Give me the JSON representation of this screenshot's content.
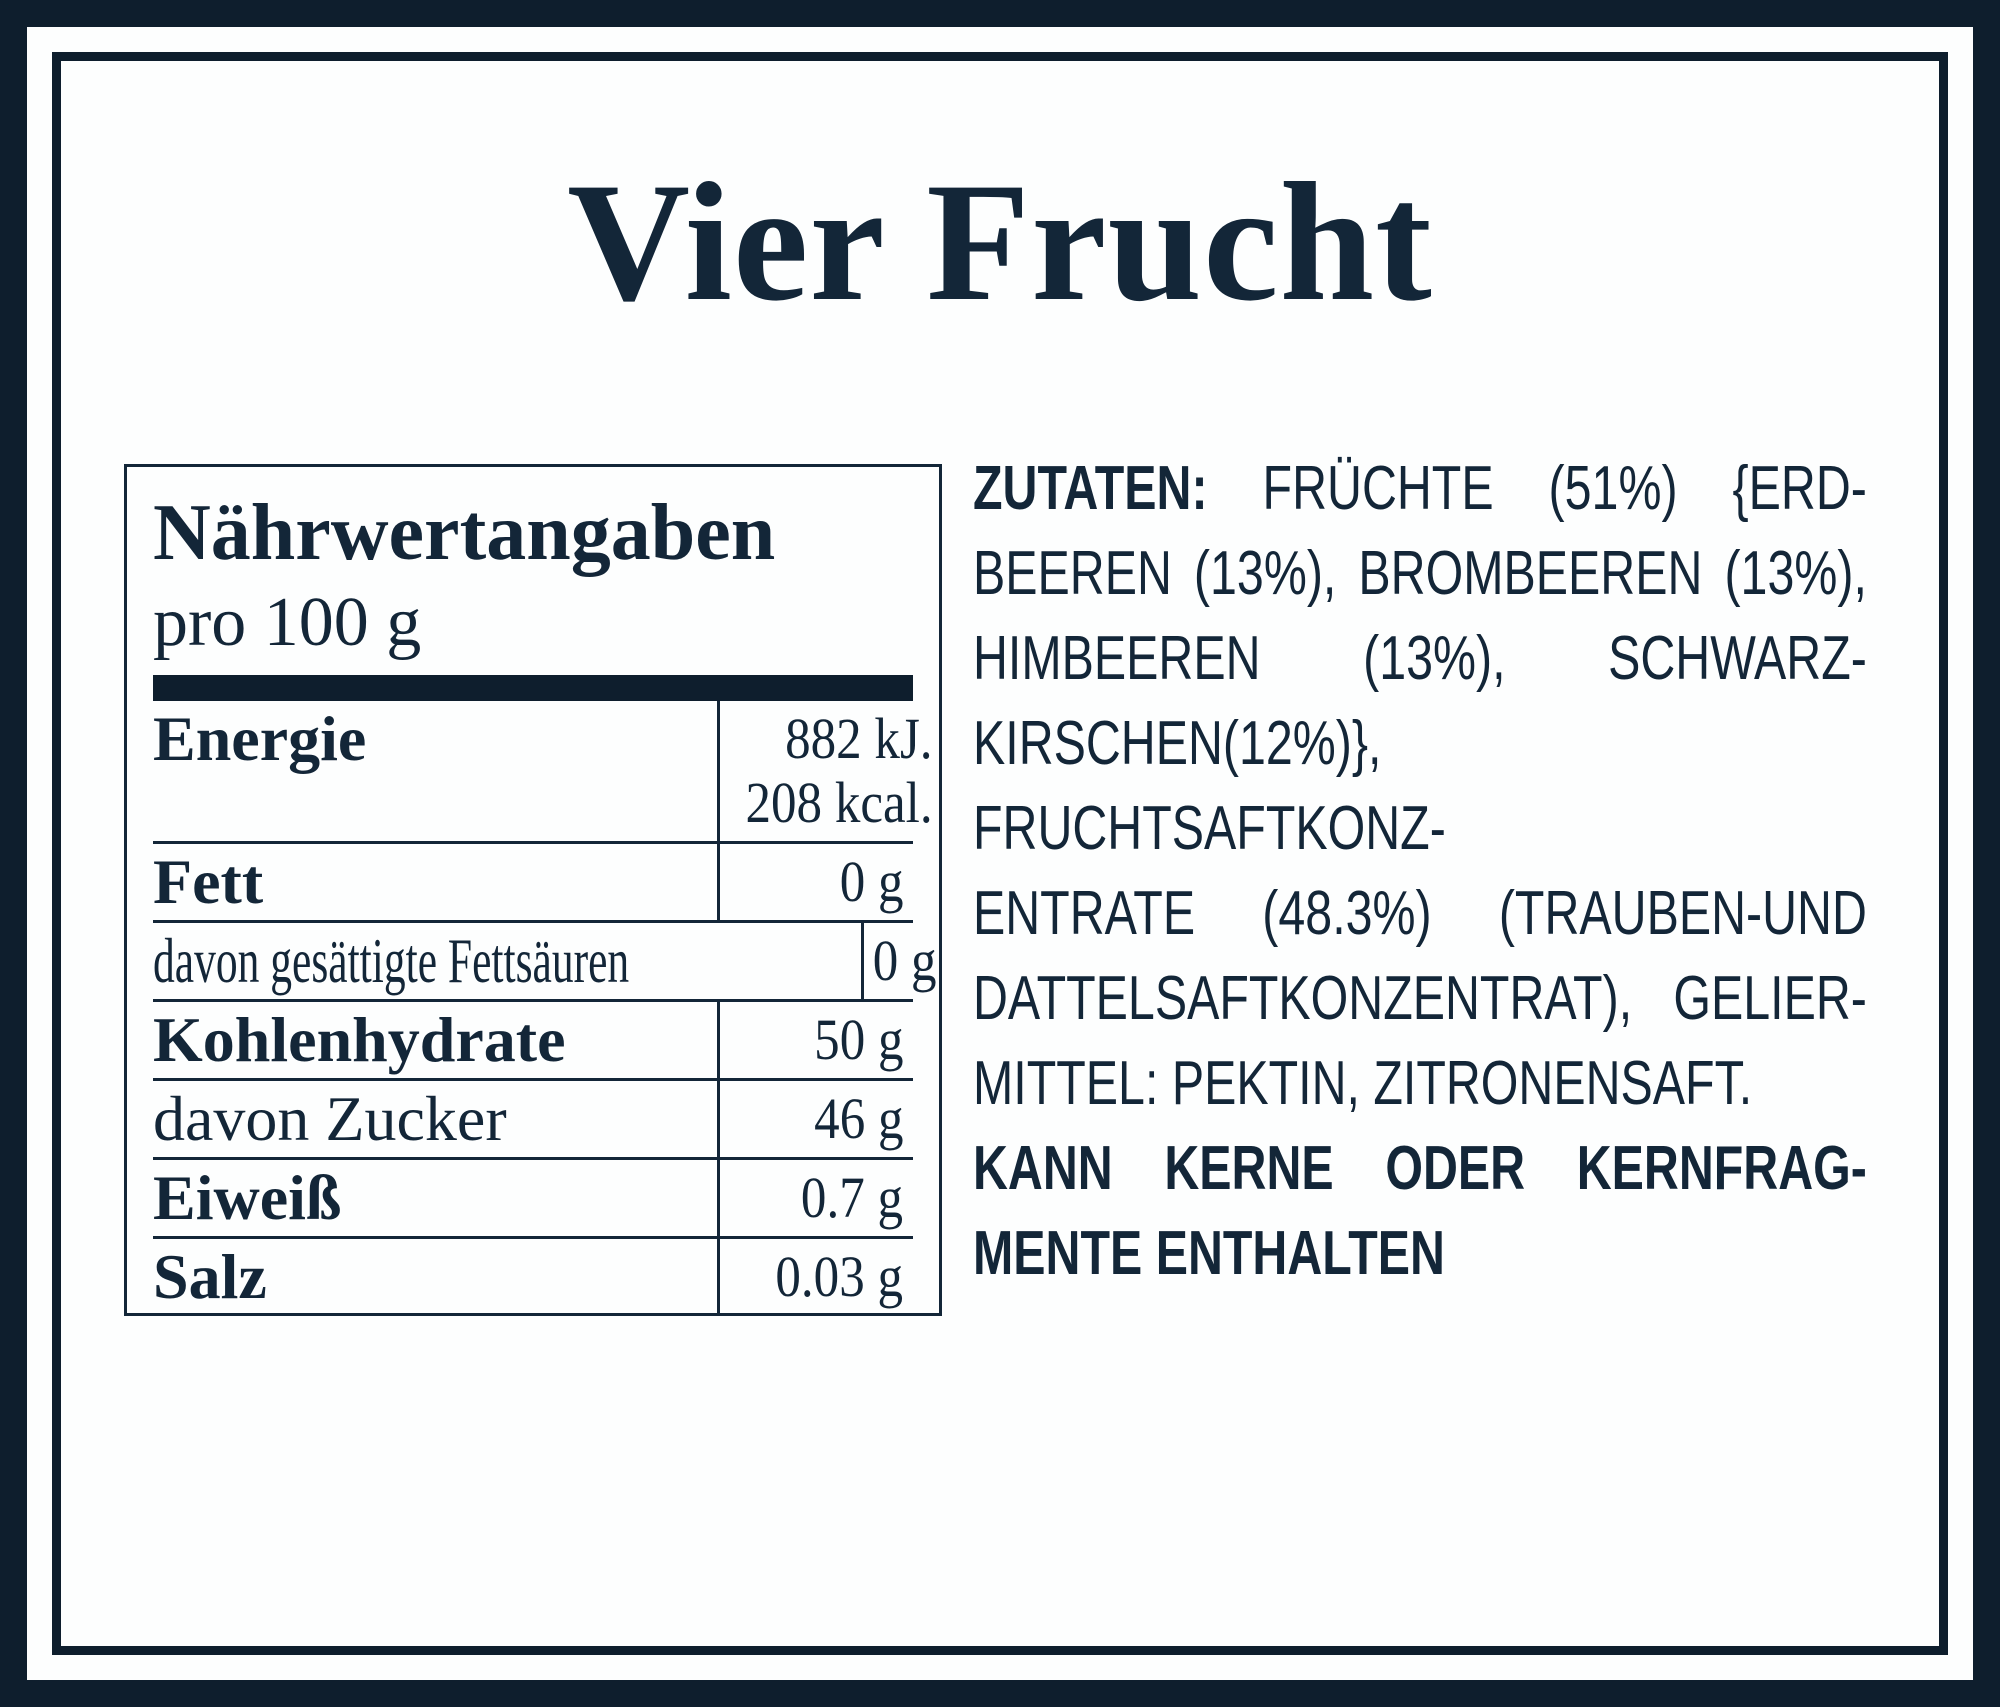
{
  "product": {
    "title": "Vier Frucht"
  },
  "nutrition": {
    "heading": "Nährwertangaben",
    "subheading": "pro 100 g",
    "rows": [
      {
        "label": "Energie",
        "bold": true,
        "values": [
          "882 kJ.",
          "208 kcal."
        ]
      },
      {
        "label": "Fett",
        "bold": true,
        "values": [
          "0 g"
        ]
      },
      {
        "label": "davon gesättigte Fettsäuren",
        "bold": false,
        "values": [
          "0 g"
        ]
      },
      {
        "label": "Kohlenhydrate",
        "bold": true,
        "values": [
          "50 g"
        ]
      },
      {
        "label": "davon Zucker",
        "bold": false,
        "values": [
          "46 g"
        ]
      },
      {
        "label": "Eiweiß",
        "bold": true,
        "values": [
          "0.7 g"
        ]
      },
      {
        "label": "Salz",
        "bold": true,
        "values": [
          "0.03 g"
        ]
      }
    ]
  },
  "ingredients": {
    "lines": [
      {
        "justify": true,
        "segments": [
          {
            "text": "ZUTATEN:",
            "bold": true
          },
          {
            "text": " FRÜCHTE (51%) {ERD-",
            "bold": false
          }
        ]
      },
      {
        "justify": true,
        "segments": [
          {
            "text": "BEEREN (13%), BROMBEEREN (13%),",
            "bold": false
          }
        ]
      },
      {
        "justify": true,
        "segments": [
          {
            "text": "HIMBEEREN (13%), SCHWARZ-",
            "bold": false
          }
        ]
      },
      {
        "justify": true,
        "segments": [
          {
            "text": "KIRSCHEN(12%)}, FRUCHTSAFTKONZ-",
            "bold": false
          }
        ]
      },
      {
        "justify": true,
        "segments": [
          {
            "text": "ENTRATE (48.3%) (TRAUBEN-UND",
            "bold": false
          }
        ]
      },
      {
        "justify": true,
        "segments": [
          {
            "text": "DATTELSAFTKONZENTRAT), GELIER-",
            "bold": false
          }
        ]
      },
      {
        "justify": false,
        "segments": [
          {
            "text": "MITTEL: PEKTIN, ZITRONENSAFT.",
            "bold": false
          }
        ]
      },
      {
        "justify": true,
        "segments": [
          {
            "text": "KANN KERNE ODER KERNFRAG-",
            "bold": true
          }
        ]
      },
      {
        "justify": false,
        "segments": [
          {
            "text": "MENTE ENTHALTEN",
            "bold": true
          }
        ]
      }
    ]
  },
  "colors": {
    "navy": "#0e1e2d",
    "ink": "#132638",
    "background": "#fdfefe"
  }
}
